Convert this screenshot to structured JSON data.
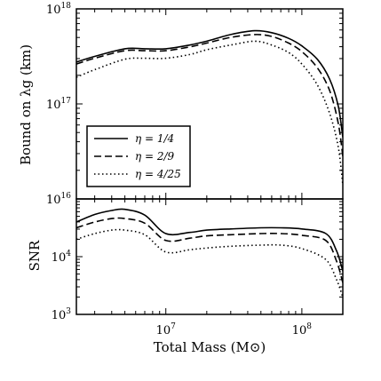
{
  "chart_data": [
    {
      "type": "line",
      "xlabel": "",
      "ylabel": "Bound on λg (km)",
      "yscale": "log",
      "xscale": "log",
      "ylim_exp": [
        16,
        18
      ],
      "xlim": [
        2200000,
        200000000
      ],
      "grid": false,
      "legend_placement": "lower-left",
      "ytick_labels": [
        {
          "base": "10",
          "exp": "18",
          "value_exp": 18
        },
        {
          "base": "10",
          "exp": "17",
          "value_exp": 17
        },
        {
          "base": "10",
          "exp": "16",
          "value_exp": 16
        }
      ],
      "x": [
        2200000,
        3000000,
        5000000,
        7000000,
        10000000,
        15000000,
        20000000,
        30000000,
        45000000,
        60000000,
        80000000,
        100000000,
        130000000,
        160000000,
        185000000,
        200000000
      ],
      "series": [
        {
          "name": "η = 1/4",
          "style": "solid",
          "values_log10": [
            17.44,
            17.5,
            17.58,
            17.58,
            17.58,
            17.62,
            17.66,
            17.73,
            17.77,
            17.75,
            17.69,
            17.61,
            17.47,
            17.26,
            16.98,
            16.65
          ]
        },
        {
          "name": "η = 2/9",
          "style": "dashed",
          "values_log10": [
            17.42,
            17.48,
            17.56,
            17.56,
            17.56,
            17.6,
            17.64,
            17.7,
            17.73,
            17.71,
            17.64,
            17.55,
            17.38,
            17.14,
            16.8,
            16.45
          ]
        },
        {
          "name": "η = 4/25",
          "style": "dotted",
          "values_log10": [
            17.28,
            17.36,
            17.47,
            17.48,
            17.48,
            17.52,
            17.57,
            17.62,
            17.66,
            17.62,
            17.54,
            17.42,
            17.2,
            16.9,
            16.55,
            16.15
          ]
        }
      ]
    },
    {
      "type": "line",
      "xlabel": "Total Mass (M⊙)",
      "ylabel": "SNR",
      "yscale": "log",
      "xscale": "log",
      "ylim_exp": [
        3,
        5
      ],
      "xlim": [
        2200000,
        200000000
      ],
      "grid": false,
      "ytick_labels": [
        {
          "base": "10",
          "exp": "4",
          "value_exp": 4
        },
        {
          "base": "10",
          "exp": "3",
          "value_exp": 3
        }
      ],
      "xtick_labels": [
        {
          "base": "10",
          "exp": "7",
          "value_exp": 7
        },
        {
          "base": "10",
          "exp": "8",
          "value_exp": 8
        }
      ],
      "x": [
        2200000,
        3000000,
        4000000,
        5000000,
        7000000,
        10000000,
        15000000,
        20000000,
        30000000,
        50000000,
        70000000,
        100000000,
        150000000,
        180000000,
        200000000
      ],
      "series": [
        {
          "name": "η = 1/4",
          "style": "solid",
          "values_log10": [
            4.6,
            4.73,
            4.8,
            4.82,
            4.72,
            4.4,
            4.42,
            4.46,
            4.48,
            4.5,
            4.5,
            4.48,
            4.4,
            4.1,
            3.75
          ]
        },
        {
          "name": "η = 2/9",
          "style": "dashed",
          "values_log10": [
            4.5,
            4.6,
            4.66,
            4.66,
            4.58,
            4.28,
            4.32,
            4.36,
            4.38,
            4.4,
            4.4,
            4.37,
            4.28,
            3.92,
            3.55
          ]
        },
        {
          "name": "η = 4/25",
          "style": "dotted",
          "values_log10": [
            4.3,
            4.4,
            4.46,
            4.46,
            4.38,
            4.08,
            4.12,
            4.15,
            4.18,
            4.2,
            4.2,
            4.14,
            3.95,
            3.6,
            3.3
          ]
        }
      ]
    }
  ]
}
